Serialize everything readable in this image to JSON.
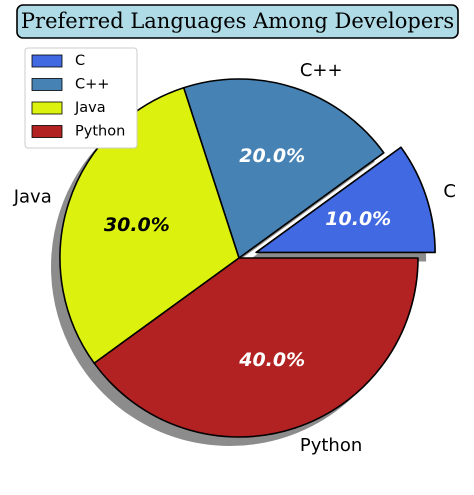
{
  "chart_data": {
    "type": "pie",
    "title": "Preferred Languages Among Developers",
    "categories": [
      "C",
      "C++",
      "Java",
      "Python"
    ],
    "values": [
      10.0,
      20.0,
      30.0,
      40.0
    ],
    "percent_labels": [
      "10.0%",
      "20.0%",
      "30.0%",
      "40.0%"
    ],
    "colors": [
      "#4169e1",
      "#4682b4",
      "#dcf20e",
      "#b22222"
    ],
    "percent_label_colors": [
      "#ffffff",
      "#ffffff",
      "#000000",
      "#ffffff"
    ],
    "exploded": [
      "C"
    ],
    "shadow": true,
    "legend": {
      "position": "top-left",
      "entries": [
        "C",
        "C++",
        "Java",
        "Python"
      ]
    }
  }
}
